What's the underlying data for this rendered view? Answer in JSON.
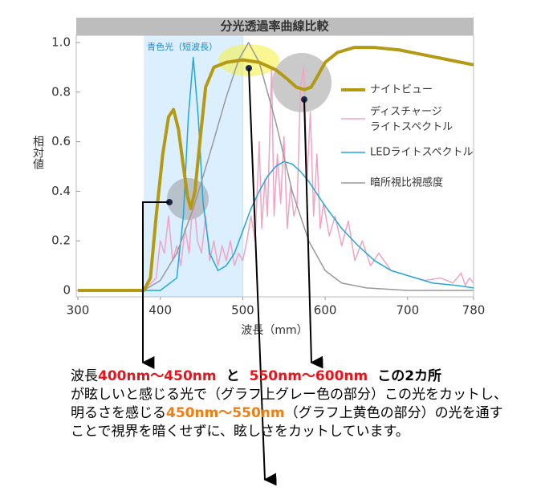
{
  "chart_data": {
    "type": "line",
    "title": "分光透過率曲線比較",
    "xlabel": "波長（mm）",
    "ylabel": "相対値",
    "xlim": [
      300,
      780
    ],
    "xticks": [
      300,
      400,
      500,
      600,
      700,
      780
    ],
    "ylim": [
      0,
      1
    ],
    "yticks": [
      0,
      0.2,
      0.4,
      0.6,
      0.8,
      {
        "value": 1,
        "label": "1.0"
      }
    ],
    "band": {
      "from": 380,
      "to": 500,
      "label": "青色光（短波長）",
      "color": "#dcefff"
    },
    "series": [
      {
        "name": "ナイトビュー",
        "color": "#b39a12",
        "width": 4,
        "x": [
          300,
          380,
          388,
          395,
          403,
          410,
          416,
          422,
          428,
          433,
          437,
          442,
          448,
          455,
          465,
          480,
          500,
          520,
          540,
          555,
          565,
          575,
          583,
          590,
          600,
          615,
          635,
          660,
          690,
          720,
          750,
          780
        ],
        "values": [
          0,
          0,
          0.05,
          0.3,
          0.55,
          0.7,
          0.73,
          0.65,
          0.5,
          0.38,
          0.33,
          0.4,
          0.6,
          0.82,
          0.9,
          0.92,
          0.93,
          0.92,
          0.89,
          0.85,
          0.82,
          0.81,
          0.82,
          0.86,
          0.92,
          0.96,
          0.98,
          0.98,
          0.97,
          0.95,
          0.93,
          0.91
        ]
      },
      {
        "name": "ディスチャージ\nライトスペクトル",
        "color": "#f0a3c4",
        "width": 1.5,
        "x": [
          380,
          395,
          400,
          405,
          410,
          415,
          420,
          425,
          430,
          435,
          440,
          445,
          450,
          455,
          460,
          465,
          470,
          475,
          480,
          485,
          490,
          495,
          500,
          505,
          510,
          515,
          520,
          523,
          527,
          530,
          535,
          538,
          542,
          546,
          550,
          554,
          558,
          562,
          566,
          570,
          574,
          578,
          582,
          586,
          590,
          594,
          598,
          605,
          612,
          620,
          628,
          636,
          645,
          655,
          665,
          680,
          700,
          720,
          740,
          755,
          765,
          770,
          775,
          780
        ],
        "values": [
          0,
          0.05,
          0.2,
          0.15,
          0.3,
          0.12,
          0.18,
          0.1,
          0.25,
          0.15,
          0.4,
          0.2,
          0.15,
          0.3,
          0.12,
          0.2,
          0.1,
          0.18,
          0.12,
          0.2,
          0.1,
          0.15,
          0.12,
          0.2,
          0.3,
          0.2,
          0.6,
          0.25,
          0.45,
          0.3,
          0.9,
          0.3,
          0.55,
          0.35,
          0.62,
          0.25,
          0.42,
          0.3,
          0.35,
          0.82,
          0.9,
          0.45,
          0.72,
          0.3,
          0.55,
          0.25,
          0.35,
          0.22,
          0.3,
          0.18,
          0.28,
          0.12,
          0.2,
          0.1,
          0.15,
          0.08,
          0.06,
          0.04,
          0.05,
          0.03,
          0.07,
          0.02,
          0.05,
          0.03
        ]
      },
      {
        "name": "LEDライトスペクトル",
        "color": "#1ea8dc",
        "width": 1.5,
        "x": [
          300,
          400,
          420,
          428,
          434,
          440,
          446,
          452,
          460,
          470,
          480,
          490,
          500,
          510,
          520,
          530,
          540,
          550,
          560,
          570,
          580,
          600,
          620,
          640,
          660,
          680,
          700,
          730,
          760,
          780
        ],
        "values": [
          0,
          0,
          0.05,
          0.3,
          0.7,
          0.94,
          0.7,
          0.35,
          0.15,
          0.08,
          0.1,
          0.15,
          0.24,
          0.33,
          0.4,
          0.46,
          0.5,
          0.52,
          0.51,
          0.48,
          0.44,
          0.34,
          0.25,
          0.18,
          0.12,
          0.08,
          0.06,
          0.03,
          0.02,
          0.01
        ]
      },
      {
        "name": "暗所視比視感度",
        "color": "#999999",
        "width": 1.5,
        "x": [
          380,
          400,
          420,
          440,
          460,
          480,
          495,
          507,
          520,
          540,
          560,
          580,
          600,
          620,
          650,
          700,
          780
        ],
        "values": [
          0,
          0.04,
          0.15,
          0.33,
          0.55,
          0.78,
          0.93,
          1,
          0.92,
          0.68,
          0.4,
          0.2,
          0.08,
          0.03,
          0.01,
          0,
          0
        ]
      }
    ],
    "note": {
      "headline": [
        {
          "text": "波長",
          "color": "#000000",
          "bold": false
        },
        {
          "text": "400nm～450nm",
          "color": "#e8131b",
          "bold": true
        },
        {
          "text": "と",
          "color": "#000000",
          "bold": true
        },
        {
          "text": "550nm～600nm",
          "color": "#e8131b",
          "bold": true
        },
        {
          "text": "この2カ所",
          "color": "#000000",
          "bold": true
        }
      ],
      "body": [
        {
          "text": "が眩しいと感じる光で（グラフ上グレー色の部分）この光をカットし、明るさを感じる",
          "color": "#000000",
          "bold": false
        },
        {
          "text": "450nm～550nm",
          "color": "#f07e12",
          "bold": true
        },
        {
          "text": "（グラフ上黄色の部分）の光を通すことで視界を暗くせずに、眩しさをカットしています。",
          "color": "#000000",
          "bold": false
        }
      ]
    }
  }
}
